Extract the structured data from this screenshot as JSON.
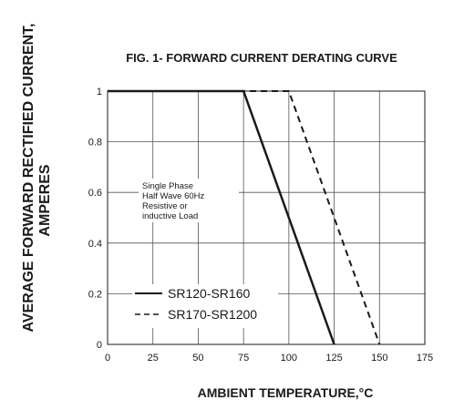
{
  "chart_data": {
    "type": "line",
    "title": "FIG. 1- FORWARD CURRENT DERATING CURVE",
    "xlabel": "AMBIENT TEMPERATURE,°C",
    "ylabel_lines": [
      "AVERAGE FORWARD RECTIFIED CURRENT,",
      "AMPERES"
    ],
    "xlim": [
      0,
      175
    ],
    "ylim": [
      0,
      1
    ],
    "x_ticks": [
      0,
      25,
      50,
      75,
      100,
      125,
      150,
      175
    ],
    "x_tick_labels": [
      "0",
      "25",
      "50",
      "75",
      "100",
      "125",
      "150",
      "175"
    ],
    "y_ticks": [
      0,
      0.2,
      0.4,
      0.6,
      0.8,
      1
    ],
    "y_tick_labels": [
      "0",
      "0.2",
      "0.4",
      "0.6",
      "0.8",
      "1"
    ],
    "grid": true,
    "series": [
      {
        "name": "SR120-SR160",
        "style": "solid",
        "color": "#1a1a1a",
        "x": [
          0,
          75,
          125
        ],
        "y": [
          1,
          1,
          0
        ]
      },
      {
        "name": "SR170-SR1200",
        "style": "dashed",
        "color": "#1a1a1a",
        "x": [
          0,
          100,
          150
        ],
        "y": [
          1,
          1,
          0
        ]
      }
    ],
    "annotation_lines": [
      "Single Phase",
      "Half Wave 60Hz",
      "Resistive or",
      "inductive Load"
    ],
    "legend_position": "bottom-left"
  }
}
